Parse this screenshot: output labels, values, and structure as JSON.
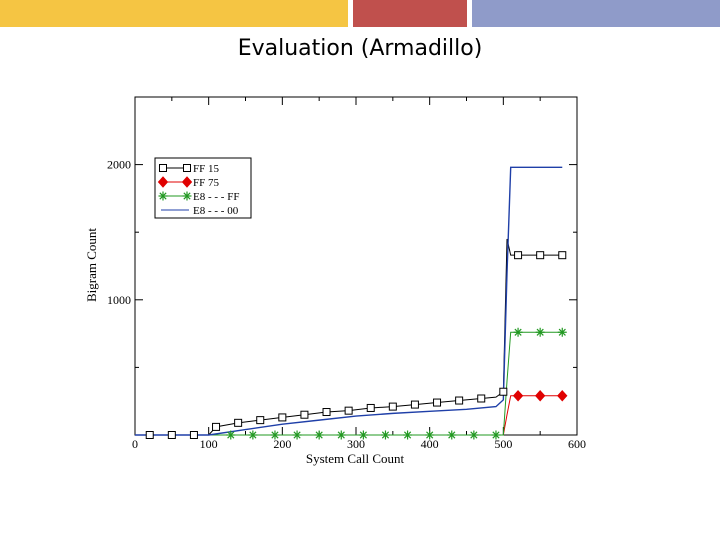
{
  "slide": {
    "title": "Evaluation  (Armadillo)",
    "header_colors": [
      "#f5c543",
      "#c0504d",
      "#8f9bc9"
    ]
  },
  "chart_data": {
    "type": "line",
    "xlabel": "System Call Count",
    "ylabel": "Bigram Count",
    "xlim": [
      0,
      600
    ],
    "ylim": [
      0,
      2500
    ],
    "xticks": [
      0,
      100,
      200,
      300,
      400,
      500,
      600
    ],
    "yticks": [
      1000,
      2000
    ],
    "grid": false,
    "legend_position": "top-left",
    "series": [
      {
        "name": "FF 15",
        "color": "#000000",
        "marker": "square",
        "x": [
          0,
          20,
          50,
          80,
          100,
          110,
          140,
          170,
          200,
          230,
          260,
          290,
          320,
          350,
          380,
          410,
          440,
          470,
          490,
          500,
          505,
          510,
          520,
          550,
          580
        ],
        "y": [
          0,
          0,
          0,
          0,
          0,
          60,
          90,
          110,
          130,
          150,
          170,
          180,
          200,
          210,
          225,
          240,
          255,
          270,
          280,
          320,
          1450,
          1330,
          1330,
          1330,
          1330
        ]
      },
      {
        "name": "FF 75",
        "color": "#e00000",
        "marker": "diamond",
        "x": [
          500,
          505,
          510,
          520,
          550,
          580
        ],
        "y": [
          0,
          150,
          290,
          290,
          290,
          290
        ]
      },
      {
        "name": "E8 - - - FF",
        "color": "#229922",
        "marker": "asterisk",
        "x": [
          0,
          100,
          130,
          160,
          190,
          220,
          250,
          280,
          310,
          340,
          370,
          400,
          430,
          460,
          490,
          500,
          505,
          510,
          520,
          550,
          580
        ],
        "y": [
          0,
          0,
          0,
          0,
          0,
          0,
          0,
          0,
          0,
          0,
          0,
          0,
          0,
          0,
          0,
          0,
          400,
          760,
          760,
          760,
          760
        ]
      },
      {
        "name": "E8 - - - 00",
        "color": "#1f3fa8",
        "marker": "none",
        "x": [
          0,
          100,
          150,
          200,
          250,
          300,
          350,
          400,
          450,
          490,
          500,
          505,
          510,
          520,
          580
        ],
        "y": [
          0,
          0,
          40,
          80,
          110,
          140,
          160,
          175,
          190,
          210,
          260,
          1200,
          1980,
          1980,
          1980
        ]
      }
    ]
  }
}
